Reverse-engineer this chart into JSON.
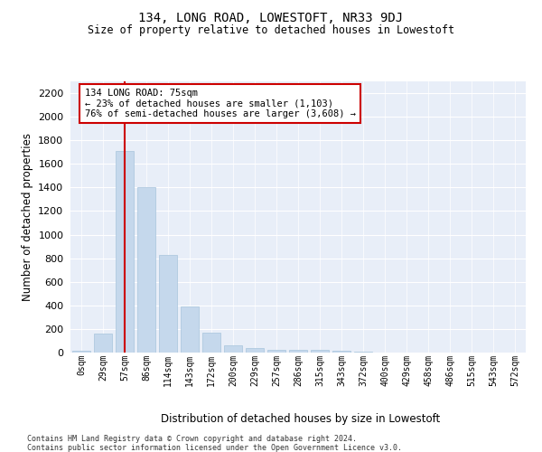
{
  "title": "134, LONG ROAD, LOWESTOFT, NR33 9DJ",
  "subtitle": "Size of property relative to detached houses in Lowestoft",
  "xlabel": "Distribution of detached houses by size in Lowestoft",
  "ylabel": "Number of detached properties",
  "bar_color": "#c5d8ec",
  "bar_edge_color": "#a8c4dc",
  "background_color": "#e8eef8",
  "grid_color": "#ffffff",
  "fig_background": "#ffffff",
  "categories": [
    "0sqm",
    "29sqm",
    "57sqm",
    "86sqm",
    "114sqm",
    "143sqm",
    "172sqm",
    "200sqm",
    "229sqm",
    "257sqm",
    "286sqm",
    "315sqm",
    "343sqm",
    "372sqm",
    "400sqm",
    "429sqm",
    "458sqm",
    "486sqm",
    "515sqm",
    "543sqm",
    "572sqm"
  ],
  "values": [
    15,
    160,
    1710,
    1400,
    830,
    390,
    165,
    65,
    35,
    25,
    25,
    25,
    15,
    10,
    0,
    0,
    0,
    0,
    0,
    0,
    0
  ],
  "ylim": [
    0,
    2300
  ],
  "yticks": [
    0,
    200,
    400,
    600,
    800,
    1000,
    1200,
    1400,
    1600,
    1800,
    2000,
    2200
  ],
  "property_bin_index": 2,
  "vline_color": "#cc0000",
  "annotation_text": "134 LONG ROAD: 75sqm\n← 23% of detached houses are smaller (1,103)\n76% of semi-detached houses are larger (3,608) →",
  "annotation_box_color": "#cc0000",
  "footer_line1": "Contains HM Land Registry data © Crown copyright and database right 2024.",
  "footer_line2": "Contains public sector information licensed under the Open Government Licence v3.0."
}
